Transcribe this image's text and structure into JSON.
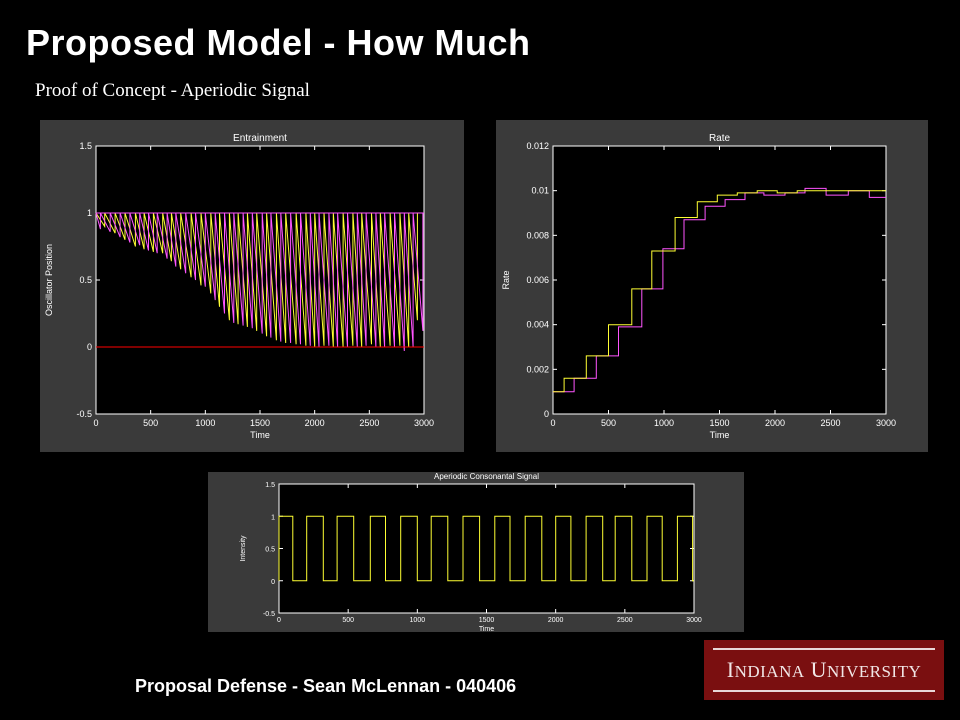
{
  "slide": {
    "title": "Proposed Model - How Much",
    "subtitle": "Proof of Concept - Aperiodic Signal",
    "footer": "Proposal Defense - Sean McLennan - 040406",
    "logo_text": "INDIANA UNIVERSITY"
  },
  "colors": {
    "background": "#000000",
    "figure_bg": "#3a3a3a",
    "plot_bg": "#000000",
    "yellow": "#ffff33",
    "magenta": "#ff55ff",
    "red": "#ff0000",
    "logo": "#7a0f10"
  },
  "chart_data": [
    {
      "type": "line",
      "title": "Entrainment",
      "xlabel": "Time",
      "ylabel": "Oscillator Position",
      "xlim": [
        0,
        3000
      ],
      "ylim": [
        -0.5,
        1.5
      ],
      "xticks": [
        "0",
        "500",
        "1000",
        "1500",
        "2000",
        "2500",
        "3000"
      ],
      "yticks": [
        "1.5",
        "1",
        "0.5",
        "0",
        "-0.5"
      ],
      "series": [
        {
          "color": "yellow",
          "resets": [
            [
              0,
              1
            ],
            [
              80,
              0.9
            ],
            [
              175,
              0.85
            ],
            [
              265,
              0.8
            ],
            [
              360,
              0.75
            ],
            [
              440,
              0.73
            ],
            [
              525,
              0.71
            ],
            [
              610,
              0.7
            ],
            [
              690,
              0.64
            ],
            [
              775,
              0.58
            ],
            [
              870,
              0.52
            ],
            [
              960,
              0.46
            ],
            [
              1050,
              0.4
            ],
            [
              1130,
              0.3
            ],
            [
              1220,
              0.2
            ],
            [
              1300,
              0.17
            ],
            [
              1385,
              0.15
            ],
            [
              1470,
              0.12
            ],
            [
              1560,
              0.08
            ],
            [
              1650,
              0.05
            ],
            [
              1735,
              0.03
            ],
            [
              1830,
              0.02
            ],
            [
              1920,
              0.01
            ],
            [
              2000,
              0.0
            ],
            [
              2085,
              0.01
            ],
            [
              2170,
              0.0
            ],
            [
              2260,
              0.0
            ],
            [
              2350,
              0.01
            ],
            [
              2430,
              0.0
            ],
            [
              2520,
              0.02
            ],
            [
              2600,
              0.0
            ],
            [
              2690,
              0.01
            ],
            [
              2780,
              0.01
            ],
            [
              2860,
              0.0
            ],
            [
              2940,
              0.2
            ]
          ]
        },
        {
          "color": "magenta",
          "resets": [
            [
              0,
              1
            ],
            [
              40,
              0.88
            ],
            [
              130,
              0.86
            ],
            [
              220,
              0.82
            ],
            [
              310,
              0.78
            ],
            [
              400,
              0.76
            ],
            [
              480,
              0.72
            ],
            [
              560,
              0.7
            ],
            [
              650,
              0.66
            ],
            [
              730,
              0.6
            ],
            [
              820,
              0.55
            ],
            [
              910,
              0.5
            ],
            [
              1000,
              0.45
            ],
            [
              1090,
              0.35
            ],
            [
              1175,
              0.25
            ],
            [
              1260,
              0.18
            ],
            [
              1345,
              0.16
            ],
            [
              1430,
              0.14
            ],
            [
              1520,
              0.1
            ],
            [
              1600,
              0.07
            ],
            [
              1690,
              0.04
            ],
            [
              1780,
              0.03
            ],
            [
              1870,
              0.02
            ],
            [
              1960,
              0.01
            ],
            [
              2040,
              0.0
            ],
            [
              2130,
              0.01
            ],
            [
              2210,
              0.0
            ],
            [
              2300,
              0.0
            ],
            [
              2390,
              0.0
            ],
            [
              2470,
              0.01
            ],
            [
              2560,
              0.0
            ],
            [
              2640,
              0.0
            ],
            [
              2730,
              0.0
            ],
            [
              2820,
              -0.03
            ],
            [
              2900,
              0.0
            ],
            [
              2990,
              0.12
            ]
          ]
        },
        {
          "color": "red",
          "name": "",
          "values_constant": 0
        }
      ]
    },
    {
      "type": "line",
      "title": "Rate",
      "xlabel": "Time",
      "ylabel": "Rate",
      "xlim": [
        0,
        3000
      ],
      "ylim": [
        0,
        0.012
      ],
      "xticks": [
        "0",
        "500",
        "1000",
        "1500",
        "2000",
        "2500",
        "3000"
      ],
      "yticks": [
        "0.012",
        "0.01",
        "0.008",
        "0.006",
        "0.004",
        "0.002",
        "0"
      ],
      "series": [
        {
          "color": "magenta",
          "steps": [
            [
              0,
              0.001
            ],
            [
              190,
              0.0016
            ],
            [
              390,
              0.0026
            ],
            [
              590,
              0.0039
            ],
            [
              800,
              0.0056
            ],
            [
              990,
              0.0074
            ],
            [
              1180,
              0.0087
            ],
            [
              1370,
              0.0093
            ],
            [
              1550,
              0.0096
            ],
            [
              1730,
              0.0099
            ],
            [
              1900,
              0.0098
            ],
            [
              2090,
              0.0099
            ],
            [
              2270,
              0.0101
            ],
            [
              2460,
              0.0098
            ],
            [
              2660,
              0.01
            ],
            [
              2850,
              0.0097
            ],
            [
              3000,
              0.0097
            ]
          ]
        },
        {
          "color": "yellow",
          "steps": [
            [
              0,
              0.001
            ],
            [
              100,
              0.0016
            ],
            [
              300,
              0.0026
            ],
            [
              500,
              0.004
            ],
            [
              710,
              0.0056
            ],
            [
              890,
              0.0073
            ],
            [
              1100,
              0.0088
            ],
            [
              1300,
              0.0095
            ],
            [
              1480,
              0.0098
            ],
            [
              1660,
              0.0099
            ],
            [
              1840,
              0.01
            ],
            [
              2020,
              0.0099
            ],
            [
              2200,
              0.01
            ],
            [
              2400,
              0.01
            ],
            [
              2580,
              0.01
            ],
            [
              2760,
              0.01
            ],
            [
              3000,
              0.01
            ]
          ]
        }
      ]
    },
    {
      "type": "line",
      "title": "Aperiodic Consonantal Signal",
      "xlabel": "Time",
      "ylabel": "Intensity",
      "xlim": [
        0,
        3000
      ],
      "ylim": [
        -0.5,
        1.5
      ],
      "xticks": [
        "0",
        "500",
        "1000",
        "1500",
        "2000",
        "2500",
        "3000"
      ],
      "yticks": [
        "1.5",
        "1",
        "0.5",
        "0",
        "-0.5"
      ],
      "series": [
        {
          "color": "yellow",
          "pulses": [
            [
              0,
              100
            ],
            [
              200,
              320
            ],
            [
              420,
              540
            ],
            [
              660,
              770
            ],
            [
              880,
              1000
            ],
            [
              1100,
              1220
            ],
            [
              1330,
              1450
            ],
            [
              1560,
              1670
            ],
            [
              1780,
              1900
            ],
            [
              2000,
              2110
            ],
            [
              2220,
              2340
            ],
            [
              2430,
              2550
            ],
            [
              2660,
              2770
            ],
            [
              2880,
              2990
            ]
          ]
        }
      ]
    }
  ]
}
